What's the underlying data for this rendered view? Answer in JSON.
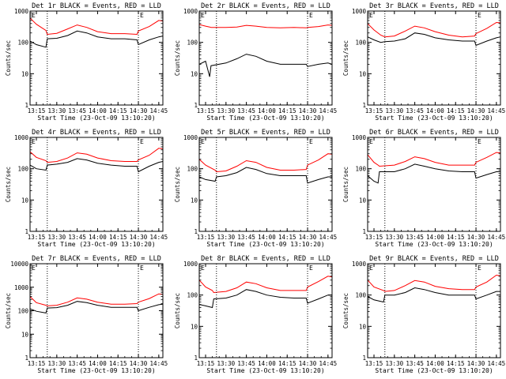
{
  "figure": {
    "x_tick_labels": [
      "13:15",
      "13:30",
      "13:45",
      "14:00",
      "14:15",
      "14:30",
      "14:45"
    ],
    "x_tick_hours": [
      13.25,
      13.5,
      13.75,
      14.0,
      14.25,
      14.5,
      14.75
    ],
    "xlabel": "Start Time (23-Oct-09 13:10:20)",
    "ylabel": "Counts/sec",
    "corner_mark_left": "E",
    "corner_mark_right": "E",
    "colors": {
      "events": "#000000",
      "lld": "#ff0000",
      "axes": "#000000",
      "background": "#ffffff"
    }
  },
  "chart_data": [
    {
      "type": "line",
      "title": "Det 1r BLACK = Events, RED = LLD",
      "xlim": [
        "13:10:20",
        "14:48"
      ],
      "ylim": [
        1,
        1000
      ],
      "yscale": "log",
      "ytick_labels": [
        "1",
        "10",
        "100",
        "1000"
      ],
      "vlines": [
        "13:23",
        "14:30"
      ],
      "x": [
        "13:10",
        "13:15",
        "13:22",
        "13:23",
        "13:30",
        "13:38",
        "13:45",
        "13:52",
        "14:00",
        "14:10",
        "14:20",
        "14:29",
        "14:30",
        "14:38",
        "14:45",
        "14:48"
      ],
      "series": [
        {
          "color": "events",
          "values": [
            110,
            85,
            70,
            130,
            135,
            165,
            230,
            200,
            150,
            130,
            130,
            120,
            85,
            120,
            150,
            160
          ]
        },
        {
          "color": "lld",
          "values": [
            600,
            380,
            240,
            180,
            195,
            270,
            360,
            300,
            220,
            190,
            190,
            180,
            230,
            320,
            500,
            480
          ]
        }
      ]
    },
    {
      "type": "line",
      "title": "Det 2r BLACK = Events, RED = LLD",
      "xlim": [
        "13:10:20",
        "14:48"
      ],
      "ylim": [
        1,
        1000
      ],
      "yscale": "log",
      "ytick_labels": [
        "1",
        "10",
        "100",
        "1000"
      ],
      "vlines": [
        "13:23",
        "14:30"
      ],
      "x": [
        "13:10",
        "13:15",
        "13:18",
        "13:19",
        "13:30",
        "13:38",
        "13:45",
        "13:52",
        "14:00",
        "14:10",
        "14:20",
        "14:29",
        "14:30",
        "14:38",
        "14:45",
        "14:48"
      ],
      "series": [
        {
          "color": "events",
          "values": [
            20,
            25,
            8,
            18,
            22,
            30,
            42,
            36,
            25,
            20,
            20,
            20,
            17,
            20,
            22,
            20
          ]
        },
        {
          "color": "lld",
          "values": [
            370,
            330,
            310,
            300,
            300,
            310,
            350,
            330,
            300,
            290,
            300,
            290,
            300,
            320,
            360,
            350
          ]
        }
      ]
    },
    {
      "type": "line",
      "title": "Det 3r BLACK = Events, RED = LLD",
      "xlim": [
        "13:10:20",
        "14:48"
      ],
      "ylim": [
        1,
        1000
      ],
      "yscale": "log",
      "ytick_labels": [
        "1",
        "10",
        "100",
        "1000"
      ],
      "vlines": [
        "13:23",
        "14:30"
      ],
      "x": [
        "13:10",
        "13:15",
        "13:20",
        "13:23",
        "13:30",
        "13:38",
        "13:45",
        "13:52",
        "14:00",
        "14:10",
        "14:20",
        "14:29",
        "14:30",
        "14:38",
        "14:45",
        "14:48"
      ],
      "series": [
        {
          "color": "events",
          "values": [
            150,
            120,
            100,
            105,
            110,
            130,
            200,
            180,
            140,
            120,
            110,
            110,
            80,
            110,
            140,
            150
          ]
        },
        {
          "color": "lld",
          "values": [
            400,
            250,
            170,
            150,
            160,
            230,
            330,
            290,
            220,
            170,
            150,
            160,
            190,
            280,
            430,
            420
          ]
        }
      ]
    },
    {
      "type": "line",
      "title": "Det 4r BLACK = Events, RED = LLD",
      "xlim": [
        "13:10:20",
        "14:48"
      ],
      "ylim": [
        1,
        1000
      ],
      "yscale": "log",
      "ytick_labels": [
        "1",
        "10",
        "100",
        "1000"
      ],
      "vlines": [
        "13:23",
        "14:30"
      ],
      "x": [
        "13:10",
        "13:15",
        "13:22",
        "13:23",
        "13:30",
        "13:38",
        "13:45",
        "13:52",
        "14:00",
        "14:10",
        "14:20",
        "14:29",
        "14:30",
        "14:38",
        "14:45",
        "14:48"
      ],
      "series": [
        {
          "color": "events",
          "values": [
            130,
            100,
            90,
            130,
            140,
            160,
            210,
            190,
            150,
            130,
            120,
            120,
            80,
            120,
            160,
            170
          ]
        },
        {
          "color": "lld",
          "values": [
            350,
            230,
            180,
            160,
            170,
            220,
            320,
            290,
            220,
            180,
            170,
            170,
            190,
            270,
            450,
            430
          ]
        }
      ]
    },
    {
      "type": "line",
      "title": "Det 5r BLACK = Events, RED = LLD",
      "xlim": [
        "13:10:20",
        "14:48"
      ],
      "ylim": [
        1,
        1000
      ],
      "yscale": "log",
      "ytick_labels": [
        "1",
        "10",
        "100",
        "1000"
      ],
      "vlines": [
        "13:23",
        "14:30"
      ],
      "x": [
        "13:10",
        "13:15",
        "13:22",
        "13:23",
        "13:30",
        "13:38",
        "13:45",
        "13:52",
        "14:00",
        "14:10",
        "14:20",
        "14:29",
        "14:30",
        "14:38",
        "14:45",
        "14:48"
      ],
      "series": [
        {
          "color": "events",
          "values": [
            55,
            45,
            40,
            55,
            60,
            75,
            110,
            95,
            70,
            60,
            60,
            60,
            35,
            45,
            55,
            55
          ]
        },
        {
          "color": "lld",
          "values": [
            200,
            130,
            90,
            80,
            85,
            120,
            180,
            160,
            110,
            90,
            90,
            95,
            130,
            190,
            300,
            290
          ]
        }
      ]
    },
    {
      "type": "line",
      "title": "Det 6r BLACK = Events, RED = LLD",
      "xlim": [
        "13:10:20",
        "14:48"
      ],
      "ylim": [
        1,
        1000
      ],
      "yscale": "log",
      "ytick_labels": [
        "1",
        "10",
        "100",
        "1000"
      ],
      "vlines": [
        "13:23",
        "14:30"
      ],
      "x": [
        "13:10",
        "13:15",
        "13:18",
        "13:19",
        "13:30",
        "13:38",
        "13:45",
        "13:52",
        "14:00",
        "14:10",
        "14:20",
        "14:29",
        "14:30",
        "14:38",
        "14:45",
        "14:48"
      ],
      "series": [
        {
          "color": "events",
          "values": [
            60,
            40,
            35,
            80,
            80,
            100,
            140,
            120,
            100,
            85,
            80,
            80,
            50,
            65,
            80,
            80
          ]
        },
        {
          "color": "lld",
          "values": [
            280,
            160,
            130,
            120,
            130,
            170,
            240,
            210,
            160,
            130,
            130,
            130,
            160,
            230,
            330,
            320
          ]
        }
      ]
    },
    {
      "type": "line",
      "title": "Det 7r BLACK = Events, RED = LLD",
      "xlim": [
        "13:10:20",
        "14:48"
      ],
      "ylim": [
        1,
        10000
      ],
      "yscale": "log",
      "ytick_labels": [
        "1",
        "10",
        "100",
        "1000",
        "10000"
      ],
      "vlines": [
        "13:23",
        "14:30"
      ],
      "x": [
        "13:10",
        "13:15",
        "13:22",
        "13:23",
        "13:30",
        "13:38",
        "13:45",
        "13:52",
        "14:00",
        "14:10",
        "14:20",
        "14:29",
        "14:30",
        "14:38",
        "14:45",
        "14:48"
      ],
      "series": [
        {
          "color": "events",
          "values": [
            120,
            95,
            80,
            130,
            135,
            170,
            250,
            220,
            170,
            140,
            140,
            140,
            100,
            140,
            180,
            190
          ]
        },
        {
          "color": "lld",
          "values": [
            400,
            220,
            170,
            160,
            170,
            230,
            350,
            310,
            230,
            190,
            190,
            200,
            230,
            330,
            520,
            500
          ]
        }
      ]
    },
    {
      "type": "line",
      "title": "Det 8r BLACK = Events, RED = LLD",
      "xlim": [
        "13:10:20",
        "14:48"
      ],
      "ylim": [
        1,
        1000
      ],
      "yscale": "log",
      "ytick_labels": [
        "1",
        "10",
        "100",
        "1000"
      ],
      "vlines": [
        "13:23",
        "14:30"
      ],
      "x": [
        "13:10",
        "13:15",
        "13:20",
        "13:21",
        "13:30",
        "13:38",
        "13:45",
        "13:52",
        "14:00",
        "14:10",
        "14:20",
        "14:29",
        "14:30",
        "14:38",
        "14:45",
        "14:48"
      ],
      "series": [
        {
          "color": "events",
          "values": [
            50,
            45,
            40,
            75,
            80,
            100,
            150,
            130,
            100,
            85,
            80,
            80,
            55,
            75,
            100,
            100
          ]
        },
        {
          "color": "lld",
          "values": [
            300,
            180,
            140,
            120,
            130,
            170,
            260,
            230,
            170,
            140,
            140,
            140,
            180,
            270,
            400,
            380
          ]
        }
      ]
    },
    {
      "type": "line",
      "title": "Det 9r BLACK = Events, RED = LLD",
      "xlim": [
        "13:10:20",
        "14:48"
      ],
      "ylim": [
        1,
        1000
      ],
      "yscale": "log",
      "ytick_labels": [
        "1",
        "10",
        "100",
        "1000"
      ],
      "vlines": [
        "13:23",
        "14:30"
      ],
      "x": [
        "13:10",
        "13:15",
        "13:22",
        "13:23",
        "13:30",
        "13:38",
        "13:45",
        "13:52",
        "14:00",
        "14:10",
        "14:20",
        "14:29",
        "14:30",
        "14:38",
        "14:45",
        "14:48"
      ],
      "series": [
        {
          "color": "events",
          "values": [
            90,
            70,
            60,
            100,
            100,
            120,
            170,
            150,
            120,
            100,
            100,
            100,
            75,
            100,
            130,
            130
          ]
        },
        {
          "color": "lld",
          "values": [
            300,
            180,
            140,
            130,
            140,
            200,
            290,
            260,
            190,
            160,
            150,
            150,
            180,
            260,
            430,
            410
          ]
        }
      ]
    }
  ]
}
